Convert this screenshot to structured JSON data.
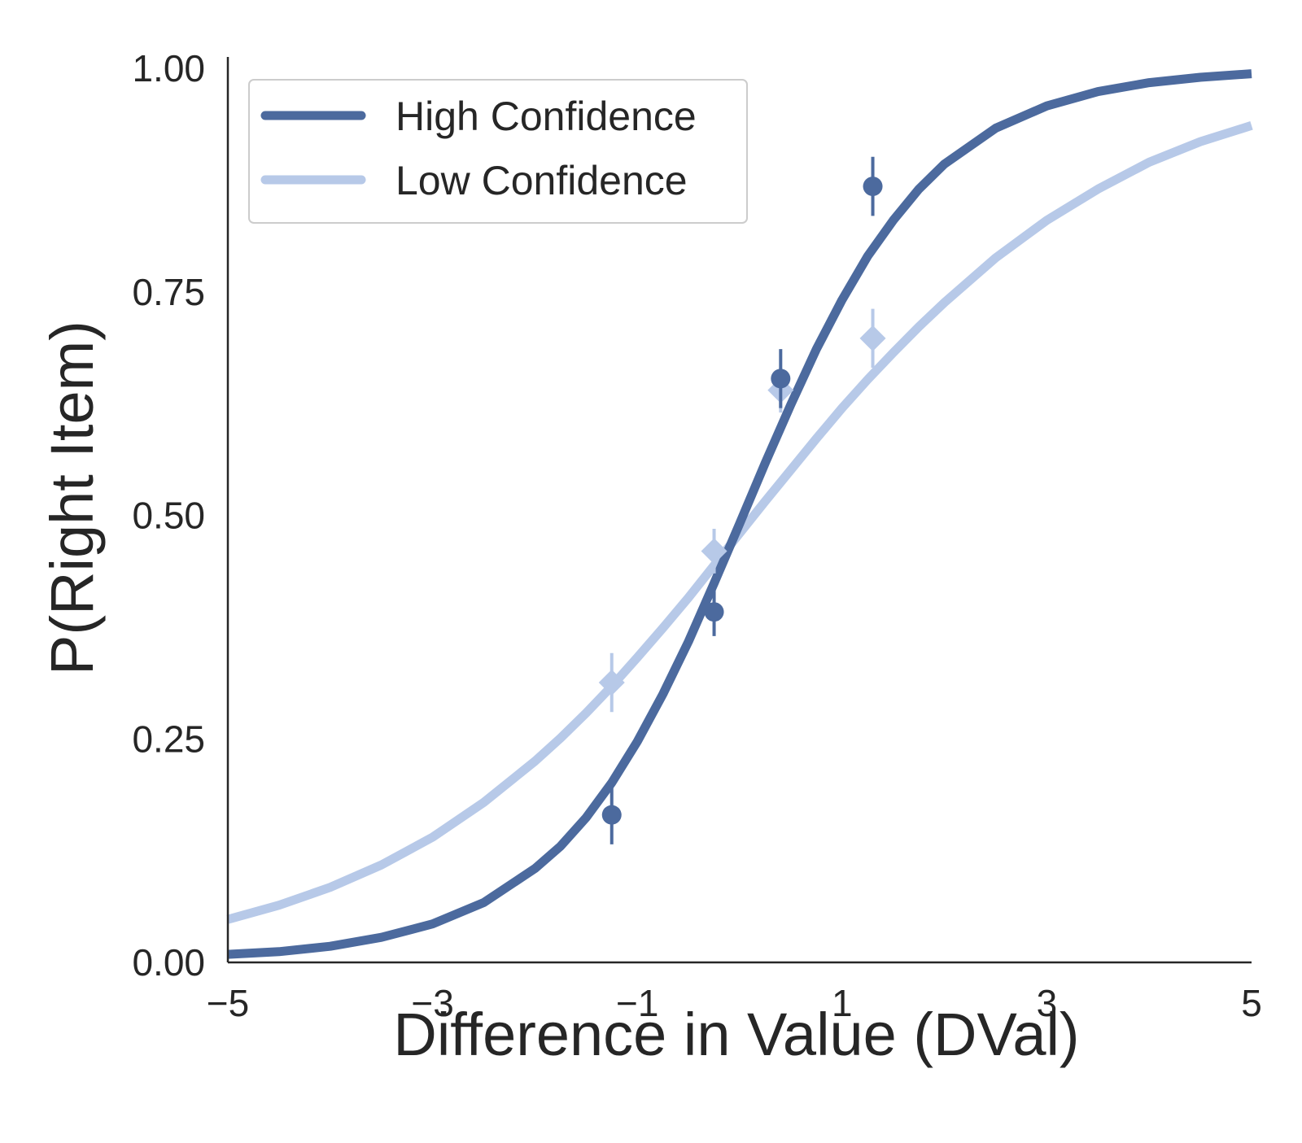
{
  "chart_data": {
    "type": "line",
    "xlabel": "Difference in Value (DVal)",
    "ylabel": "P(Right Item)",
    "xlim": [
      -5,
      5
    ],
    "ylim": [
      0,
      1
    ],
    "x_ticks": [
      "−5",
      "−3",
      "−1",
      "1",
      "3",
      "5"
    ],
    "y_ticks": [
      "0.00",
      "0.25",
      "0.50",
      "0.75",
      "1.00"
    ],
    "grid": false,
    "legend_position": "top-left",
    "series": [
      {
        "name": "High Confidence",
        "color": "#4c6a9e",
        "marker": "circle",
        "curve": {
          "x": [
            -5,
            -4.5,
            -4,
            -3.5,
            -3,
            -2.5,
            -2,
            -1.75,
            -1.5,
            -1.25,
            -1,
            -0.75,
            -0.5,
            -0.25,
            0,
            0.25,
            0.5,
            0.75,
            1,
            1.25,
            1.5,
            1.75,
            2,
            2.5,
            3,
            3.5,
            4,
            4.5,
            5
          ],
          "y": [
            0.009,
            0.012,
            0.018,
            0.028,
            0.043,
            0.067,
            0.105,
            0.13,
            0.162,
            0.201,
            0.247,
            0.3,
            0.359,
            0.424,
            0.491,
            0.559,
            0.624,
            0.686,
            0.741,
            0.79,
            0.83,
            0.865,
            0.893,
            0.933,
            0.958,
            0.974,
            0.984,
            0.99,
            0.994
          ]
        },
        "points": [
          {
            "x": -1.25,
            "y": 0.165,
            "err": 0.033
          },
          {
            "x": -0.25,
            "y": 0.392,
            "err": 0.027
          },
          {
            "x": 0.4,
            "y": 0.653,
            "err": 0.033
          },
          {
            "x": 1.3,
            "y": 0.868,
            "err": 0.033
          }
        ]
      },
      {
        "name": "Low Confidence",
        "color": "#b7c9e8",
        "marker": "diamond",
        "curve": {
          "x": [
            -5,
            -4.5,
            -4,
            -3.5,
            -3,
            -2.5,
            -2,
            -1.75,
            -1.5,
            -1.25,
            -1,
            -0.75,
            -0.5,
            -0.25,
            0,
            0.25,
            0.5,
            0.75,
            1,
            1.25,
            1.5,
            1.75,
            2,
            2.5,
            3,
            3.5,
            4,
            4.5,
            5
          ],
          "y": [
            0.048,
            0.064,
            0.084,
            0.109,
            0.14,
            0.179,
            0.225,
            0.251,
            0.279,
            0.309,
            0.341,
            0.374,
            0.408,
            0.444,
            0.48,
            0.516,
            0.551,
            0.586,
            0.62,
            0.652,
            0.682,
            0.711,
            0.738,
            0.788,
            0.83,
            0.865,
            0.895,
            0.918,
            0.936
          ]
        },
        "points": [
          {
            "x": -1.25,
            "y": 0.313,
            "err": 0.033
          },
          {
            "x": -0.25,
            "y": 0.46,
            "err": 0.025
          },
          {
            "x": 0.4,
            "y": 0.64,
            "err": 0.025
          },
          {
            "x": 1.3,
            "y": 0.698,
            "err": 0.033
          }
        ]
      }
    ]
  }
}
